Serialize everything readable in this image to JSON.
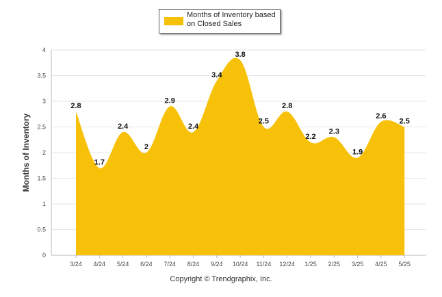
{
  "chart_data": {
    "type": "area",
    "categories": [
      "3/24",
      "4/24",
      "5/24",
      "6/24",
      "7/24",
      "8/24",
      "9/24",
      "10/24",
      "11/24",
      "12/24",
      "1/25",
      "2/25",
      "3/25",
      "4/25",
      "5/25"
    ],
    "series": [
      {
        "name": "Months of Inventory based on Closed Sales",
        "values": [
          2.8,
          1.7,
          2.4,
          2,
          2.9,
          2.4,
          3.4,
          3.8,
          2.5,
          2.8,
          2.2,
          2.3,
          1.9,
          2.6,
          2.5
        ],
        "color": "#F7C10A"
      }
    ],
    "data_labels": [
      "2.8",
      "1.7",
      "2.4",
      "2",
      "2.9",
      "2.4",
      "3.4",
      "3.8",
      "2.5",
      "2.8",
      "2.2",
      "2.3",
      "1.9",
      "2.6",
      "2.5"
    ],
    "ylabel": "Months of Inventory",
    "xlabel": "",
    "ylim": [
      0,
      4
    ],
    "yticks": [
      "0",
      "0.5",
      "1",
      "1.5",
      "2",
      "2.5",
      "3",
      "3.5",
      "4"
    ],
    "grid": true,
    "legend_position": "top-center"
  },
  "legend": {
    "label": "Months of Inventory based on Closed Sales"
  },
  "footer": {
    "text": "Copyright © Trendgraphix, Inc."
  }
}
